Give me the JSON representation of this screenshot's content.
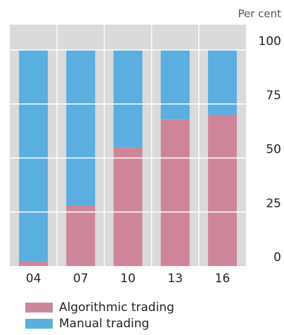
{
  "chart_data": {
    "type": "stacked_bar",
    "y_label": "Per cent",
    "categories": [
      "04",
      "07",
      "10",
      "13",
      "16"
    ],
    "series": [
      {
        "name": "Algorithmic trading",
        "color": "#cf8599",
        "values": [
          2,
          28,
          55,
          68,
          70
        ]
      },
      {
        "name": "Manual trading",
        "color": "#5aaee0",
        "values": [
          98,
          72,
          45,
          32,
          30
        ]
      }
    ],
    "ylim": [
      0,
      100
    ],
    "yticks": [
      0,
      25,
      50,
      75,
      100
    ],
    "grid": true
  }
}
